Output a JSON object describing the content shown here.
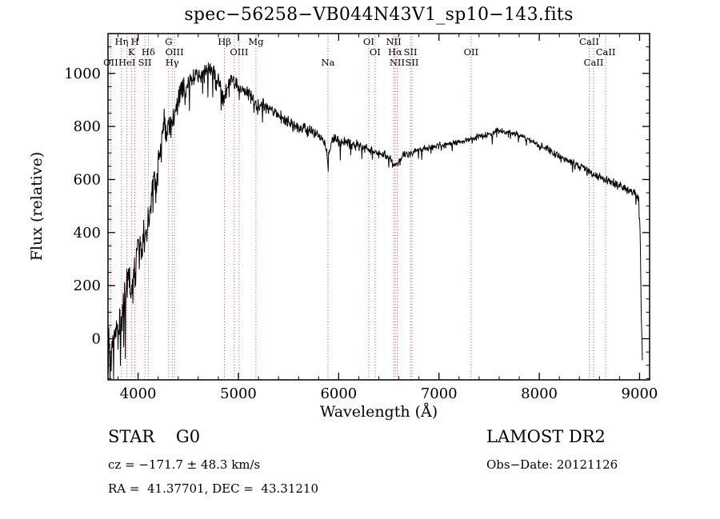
{
  "title": "spec−56258−VB044N43V1_sp10−143.fits",
  "chart_data": {
    "type": "line",
    "title": "spec−56258−VB044N43V1_sp10−143.fits",
    "xlabel": "Wavelength (Å)",
    "ylabel": "Flux (relative)",
    "xlim": [
      3700,
      9100
    ],
    "ylim": [
      -155,
      1150
    ],
    "xticks": [
      4000,
      5000,
      6000,
      7000,
      8000,
      9000
    ],
    "yticks": [
      0,
      200,
      400,
      600,
      800,
      1000
    ],
    "line_color": "#000000",
    "marker_color": "#9b3333",
    "noise_seed": 77,
    "sample_step": 4,
    "sample_end": 9030,
    "spectrum_anchors": {
      "x": [
        3700,
        3740,
        3780,
        3820,
        3860,
        3900,
        3935,
        3970,
        4010,
        4050,
        4085,
        4120,
        4160,
        4200,
        4240,
        4280,
        4310,
        4345,
        4380,
        4420,
        4470,
        4520,
        4570,
        4620,
        4680,
        4740,
        4800,
        4861,
        4920,
        5000,
        5080,
        5175,
        5250,
        5350,
        5450,
        5550,
        5650,
        5750,
        5850,
        5893,
        5940,
        6020,
        6100,
        6180,
        6260,
        6340,
        6420,
        6500,
        6563,
        6640,
        6720,
        6800,
        6900,
        7000,
        7100,
        7200,
        7300,
        7400,
        7500,
        7600,
        7700,
        7800,
        7900,
        8000,
        8100,
        8200,
        8300,
        8400,
        8500,
        8600,
        8700,
        8800,
        8900,
        8950,
        8990,
        9005,
        9015,
        9030
      ],
      "y": [
        -60,
        -20,
        40,
        90,
        140,
        220,
        170,
        280,
        360,
        330,
        420,
        470,
        560,
        650,
        760,
        820,
        780,
        810,
        890,
        940,
        930,
        965,
        1000,
        990,
        1010,
        1000,
        970,
        920,
        970,
        950,
        930,
        880,
        880,
        860,
        830,
        800,
        790,
        775,
        750,
        690,
        745,
        745,
        740,
        730,
        720,
        710,
        700,
        685,
        645,
        690,
        700,
        710,
        720,
        730,
        735,
        740,
        750,
        760,
        770,
        785,
        780,
        765,
        750,
        730,
        710,
        690,
        670,
        650,
        630,
        610,
        592,
        575,
        558,
        548,
        530,
        420,
        120,
        -120
      ]
    },
    "noise_anchors": {
      "x": [
        3700,
        3800,
        3900,
        4000,
        4100,
        4200,
        4300,
        4400,
        4600,
        4800,
        5000,
        5300,
        5600,
        5900,
        6200,
        6500,
        6800,
        7200,
        7600,
        8000,
        8400,
        8800,
        9030
      ],
      "amp": [
        115,
        105,
        95,
        90,
        85,
        75,
        65,
        50,
        40,
        33,
        28,
        24,
        22,
        24,
        18,
        17,
        14,
        12,
        13,
        13,
        14,
        16,
        15
      ]
    },
    "spectral_lines": [
      {
        "label": "OII",
        "wavelength": 3727,
        "row": 3
      },
      {
        "label": "Hη",
        "wavelength": 3835,
        "row": 1
      },
      {
        "label": "HeI",
        "wavelength": 3889,
        "row": 3
      },
      {
        "label": "K",
        "wavelength": 3934,
        "row": 2
      },
      {
        "label": "H",
        "wavelength": 3968,
        "row": 1
      },
      {
        "label": "SII",
        "wavelength": 4068,
        "row": 3
      },
      {
        "label": "Hδ",
        "wavelength": 4102,
        "row": 2
      },
      {
        "label": "G",
        "wavelength": 4305,
        "row": 1
      },
      {
        "label": "Hγ",
        "wavelength": 4340,
        "row": 3
      },
      {
        "label": "OIII",
        "wavelength": 4363,
        "row": 2
      },
      {
        "label": "Hβ",
        "wavelength": 4861,
        "row": 1
      },
      {
        "label": "",
        "wavelength": 4959,
        "row": 0
      },
      {
        "label": "OIII",
        "wavelength": 5007,
        "row": 2
      },
      {
        "label": "Mg",
        "wavelength": 5175,
        "row": 1
      },
      {
        "label": "Na",
        "wavelength": 5893,
        "row": 3
      },
      {
        "label": "OI",
        "wavelength": 6300,
        "row": 1
      },
      {
        "label": "OI",
        "wavelength": 6363,
        "row": 2
      },
      {
        "label": "NII",
        "wavelength": 6548,
        "row": 1
      },
      {
        "label": "Hα",
        "wavelength": 6563,
        "row": 2
      },
      {
        "label": "NII",
        "wavelength": 6583,
        "row": 3
      },
      {
        "label": "SII",
        "wavelength": 6716,
        "row": 2
      },
      {
        "label": "SII",
        "wavelength": 6731,
        "row": 3
      },
      {
        "label": "OII",
        "wavelength": 7320,
        "row": 2
      },
      {
        "label": "CaII",
        "wavelength": 8498,
        "row": 1
      },
      {
        "label": "CaII",
        "wavelength": 8542,
        "row": 3
      },
      {
        "label": "CaII",
        "wavelength": 8662,
        "row": 2
      }
    ]
  },
  "annotations": {
    "class_label": "STAR    G0",
    "survey": "LAMOST DR2",
    "cz": "cz = −171.7 ± 48.3 km/s",
    "obs_date": "Obs−Date: 20121126",
    "radec": "RA =  41.37701, DEC =  43.31210"
  }
}
